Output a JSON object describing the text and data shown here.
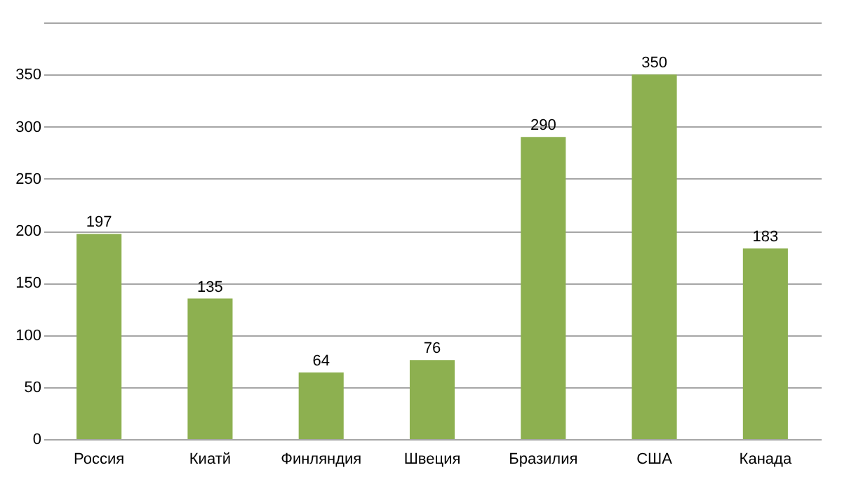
{
  "chart_data": {
    "type": "bar",
    "categories": [
      "Россия",
      "Киатй",
      "Финляндия",
      "Швеция",
      "Бразилия",
      "США",
      "Канада"
    ],
    "values": [
      197,
      135,
      64,
      76,
      290,
      350,
      183
    ],
    "color": "#8db050",
    "ylim": [
      0,
      400
    ],
    "yticks": [
      0,
      50,
      100,
      150,
      200,
      250,
      300,
      350,
      {
        "value": 400,
        "label": null
      }
    ],
    "grid": "y",
    "data_labels": true
  }
}
